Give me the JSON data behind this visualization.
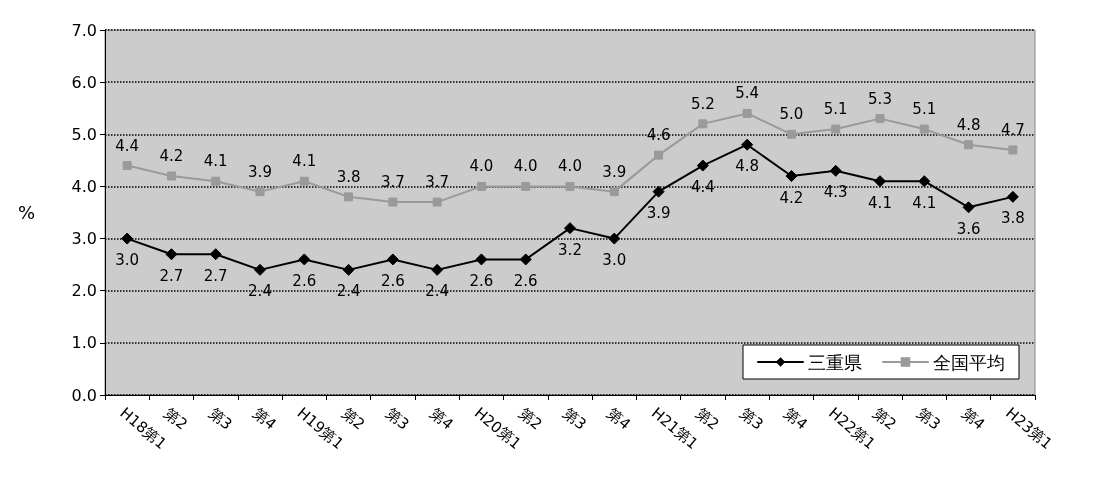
{
  "chart_data": {
    "type": "line",
    "ylabel": "%",
    "categories": [
      "H18第1",
      "第2",
      "第3",
      "第4",
      "H19第1",
      "第2",
      "第3",
      "第4",
      "H20第1",
      "第2",
      "第3",
      "第4",
      "H21第1",
      "第2",
      "第3",
      "第4",
      "H22第1",
      "第2",
      "第3",
      "第4",
      "H23第1"
    ],
    "series": [
      {
        "name": "三重県",
        "color": "#000000",
        "marker": "diamond",
        "values": [
          3.0,
          2.7,
          2.7,
          2.4,
          2.6,
          2.4,
          2.6,
          2.4,
          2.6,
          2.6,
          3.2,
          3.0,
          3.9,
          4.4,
          4.8,
          4.2,
          4.3,
          4.1,
          4.1,
          3.6,
          3.8
        ],
        "value_labels": [
          "3.0",
          "2.7",
          "2.7",
          "2.4",
          "2.6",
          "2.4",
          "2.6",
          "2.4",
          "2.6",
          "2.6",
          "3.2",
          "3.0",
          "3.9",
          "4.4",
          "4.8",
          "4.2",
          "4.3",
          "4.1",
          "4.1",
          "3.6",
          "3.8"
        ]
      },
      {
        "name": "全国平均",
        "color": "#9a9a9a",
        "marker": "square",
        "values": [
          4.4,
          4.2,
          4.1,
          3.9,
          4.1,
          3.8,
          3.7,
          3.7,
          4.0,
          4.0,
          4.0,
          3.9,
          4.6,
          5.2,
          5.4,
          5.0,
          5.1,
          5.3,
          5.1,
          4.8,
          4.7
        ],
        "value_labels": [
          "4.4",
          "4.2",
          "4.1",
          "3.9",
          "4.1",
          "3.8",
          "3.7",
          "3.7",
          "4.0",
          "4.0",
          "4.0",
          "3.9",
          "4.6",
          "5.2",
          "5.4",
          "5.0",
          "5.1",
          "5.3",
          "5.1",
          "4.8",
          "4.7"
        ]
      }
    ],
    "ylim": [
      0,
      7
    ],
    "yticks": [
      {
        "value": 0,
        "label": "0.0"
      },
      {
        "value": 1,
        "label": "1.0"
      },
      {
        "value": 2,
        "label": "2.0"
      },
      {
        "value": 3,
        "label": "3.0"
      },
      {
        "value": 4,
        "label": "4.0"
      },
      {
        "value": 5,
        "label": "5.0"
      },
      {
        "value": 6,
        "label": "6.0"
      },
      {
        "value": 7,
        "label": "7.0"
      }
    ],
    "grid": "y",
    "legend": "bottom right",
    "line_style": "solid"
  }
}
